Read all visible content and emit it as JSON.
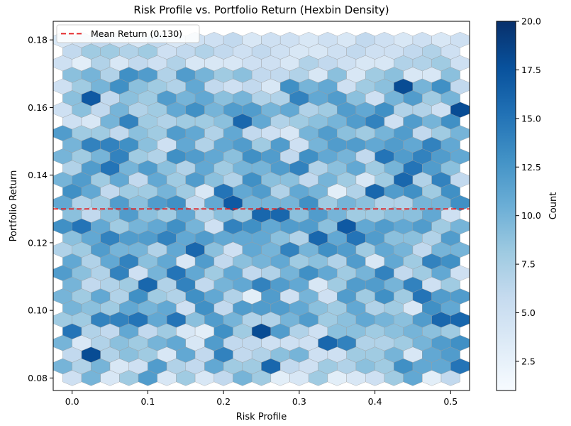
{
  "chart_data": {
    "type": "hexbin",
    "title": "Risk Profile vs. Portfolio Return (Hexbin Density)",
    "xlabel": "Risk Profile",
    "ylabel": "Portfolio Return",
    "xlim": [
      -0.025,
      0.525
    ],
    "ylim": [
      0.0763,
      0.1855
    ],
    "x_ticks": [
      0.0,
      0.1,
      0.2,
      0.3,
      0.4,
      0.5
    ],
    "x_tick_labels": [
      "0.0",
      "0.1",
      "0.2",
      "0.3",
      "0.4",
      "0.5"
    ],
    "y_ticks": [
      0.08,
      0.1,
      0.12,
      0.14,
      0.16,
      0.18
    ],
    "y_tick_labels": [
      "0.08",
      "0.10",
      "0.12",
      "0.14",
      "0.16",
      "0.18"
    ],
    "grid": false,
    "gridsize": {
      "cols": 21,
      "rows": 18
    },
    "x_range": [
      0.0,
      0.5
    ],
    "y_range": [
      0.08,
      0.18
    ],
    "mean_line": {
      "value": 0.13,
      "label": "Mean Return (0.130)",
      "color": "#e31a1c",
      "style": "dashed"
    },
    "legend": {
      "position": "top-left",
      "entries": [
        "Mean Return (0.130)"
      ]
    },
    "colorbar": {
      "label": "Count",
      "colormap": "Blues",
      "range": [
        1,
        20
      ],
      "ticks": [
        2.5,
        5.0,
        7.5,
        10.0,
        12.5,
        15.0,
        17.5,
        20.0
      ],
      "tick_labels": [
        "2.5",
        "5.0",
        "7.5",
        "10.0",
        "12.5",
        "15.0",
        "17.5",
        "20.0"
      ]
    },
    "counts": [
      [
        5,
        10,
        4,
        8,
        12,
        4,
        8,
        4,
        6,
        10,
        8,
        3,
        4,
        8,
        3,
        4,
        5,
        8,
        11,
        3,
        6
      ],
      [
        10,
        7,
        10,
        4,
        5,
        12,
        7,
        6,
        11,
        8,
        8,
        16,
        6,
        5,
        8,
        7,
        9,
        8,
        13,
        11,
        11,
        15
      ],
      [
        6,
        18,
        7,
        9,
        8,
        4,
        11,
        6,
        14,
        6,
        7,
        9,
        10,
        5,
        5,
        8,
        8,
        10,
        4,
        11,
        12
      ],
      [
        10,
        4,
        7,
        9,
        8,
        10,
        11,
        4,
        12,
        6,
        6,
        5,
        5,
        5,
        16,
        14,
        7,
        7,
        8,
        10,
        12,
        13
      ],
      [
        15,
        7,
        6,
        11,
        6,
        8,
        4,
        3,
        13,
        8,
        18,
        12,
        7,
        5,
        9,
        9,
        8,
        9,
        10,
        9,
        8
      ],
      [
        8,
        8,
        14,
        14,
        15,
        11,
        15,
        9,
        12,
        10,
        7,
        7,
        10,
        12,
        8,
        9,
        11,
        10,
        9,
        12,
        16,
        16
      ],
      [
        10,
        9,
        8,
        11,
        10,
        11,
        5,
        13,
        6,
        12,
        12,
        12,
        11,
        9,
        8,
        11,
        7,
        8,
        4,
        13,
        11
      ],
      [
        10,
        8,
        11,
        7,
        13,
        8,
        7,
        13,
        11,
        7,
        3,
        12,
        5,
        10,
        5,
        12,
        8,
        13,
        8,
        15,
        12,
        12
      ],
      [
        10,
        6,
        7,
        8,
        16,
        7,
        14,
        6,
        10,
        11,
        14,
        12,
        11,
        4,
        8,
        12,
        12,
        10,
        14,
        5,
        8
      ],
      [
        12,
        9,
        7,
        14,
        5,
        10,
        15,
        11,
        8,
        11,
        6,
        7,
        10,
        13,
        11,
        8,
        10,
        14,
        6,
        8,
        11,
        5
      ],
      [
        11,
        7,
        11,
        14,
        9,
        11,
        4,
        12,
        6,
        9,
        10,
        11,
        8,
        9,
        7,
        12,
        4,
        11,
        8,
        14,
        13
      ],
      [
        7,
        8,
        12,
        10,
        10,
        7,
        11,
        16,
        9,
        5,
        11,
        10,
        14,
        10,
        13,
        12,
        8,
        11,
        10,
        6,
        10,
        10
      ],
      [
        9,
        11,
        14,
        12,
        12,
        14,
        11,
        12,
        11,
        11,
        11,
        9,
        7,
        16,
        11,
        15,
        12,
        9,
        9,
        7,
        12
      ],
      [
        13,
        15,
        11,
        8,
        10,
        11,
        13,
        10,
        5,
        14,
        13,
        11,
        12,
        12,
        9,
        17,
        11,
        12,
        11,
        12,
        8,
        10
      ],
      [
        9,
        6,
        9,
        12,
        9,
        8,
        11,
        7,
        9,
        8,
        16,
        16,
        9,
        12,
        10,
        8,
        8,
        9,
        9,
        11,
        5
      ],
      [
        11,
        7,
        8,
        12,
        9,
        12,
        13,
        6,
        11,
        17,
        10,
        10,
        10,
        13,
        8,
        10,
        9,
        7,
        7,
        10,
        10,
        13
      ],
      [
        13,
        11,
        6,
        8,
        8,
        10,
        8,
        4,
        15,
        11,
        12,
        7,
        11,
        10,
        3,
        7,
        16,
        12,
        13,
        8,
        13
      ],
      [
        10,
        12,
        8,
        11,
        6,
        11,
        8,
        12,
        9,
        7,
        13,
        9,
        9,
        6,
        10,
        8,
        4,
        8,
        16,
        7,
        14,
        6
      ],
      [
        7,
        12,
        15,
        10,
        12,
        9,
        7,
        11,
        8,
        10,
        10,
        12,
        14,
        7,
        9,
        11,
        8,
        10,
        15,
        12,
        9
      ],
      [
        10,
        8,
        10,
        14,
        8,
        7,
        13,
        12,
        11,
        9,
        13,
        12,
        6,
        13,
        11,
        10,
        6,
        15,
        12,
        14,
        12,
        11
      ],
      [
        10,
        14,
        14,
        13,
        9,
        5,
        11,
        7,
        11,
        12,
        8,
        12,
        5,
        10,
        12,
        12,
        11,
        12,
        11,
        14,
        11
      ],
      [
        12,
        8,
        8,
        6,
        9,
        8,
        12,
        11,
        7,
        11,
        6,
        5,
        4,
        10,
        12,
        9,
        8,
        10,
        12,
        6,
        8,
        10
      ],
      [
        5,
        4,
        10,
        14,
        8,
        7,
        8,
        8,
        9,
        16,
        11,
        7,
        8,
        9,
        10,
        12,
        14,
        5,
        12,
        10,
        13
      ],
      [
        5,
        9,
        6,
        10,
        7,
        8,
        11,
        13,
        10,
        12,
        12,
        10,
        11,
        7,
        8,
        12,
        11,
        13,
        7,
        7,
        5,
        18
      ],
      [
        9,
        17,
        6,
        9,
        8,
        12,
        10,
        11,
        9,
        10,
        7,
        7,
        14,
        11,
        12,
        9,
        5,
        10,
        12,
        8,
        10
      ],
      [
        5,
        8,
        10,
        13,
        9,
        8,
        7,
        11,
        6,
        5,
        6,
        4,
        13,
        10,
        11,
        5,
        8,
        9,
        18,
        10,
        13,
        6
      ],
      [
        9,
        10,
        7,
        13,
        12,
        7,
        12,
        10,
        8,
        9,
        6,
        6,
        7,
        4,
        9,
        4,
        8,
        9,
        4,
        4,
        9
      ],
      [
        5,
        3,
        7,
        4,
        6,
        5,
        7,
        4,
        4,
        4,
        5,
        5,
        4,
        7,
        6,
        5,
        4,
        4,
        7,
        7,
        8,
        5
      ],
      [
        6,
        8,
        8,
        7,
        8,
        5,
        6,
        7,
        6,
        5,
        6,
        5,
        4,
        4,
        5,
        6,
        5,
        5,
        6,
        7,
        5
      ],
      [
        4,
        5,
        6,
        5,
        4,
        6,
        4,
        5,
        5,
        6,
        4,
        5,
        5,
        4,
        5,
        4,
        6,
        5,
        4,
        5,
        4,
        5
      ]
    ]
  }
}
